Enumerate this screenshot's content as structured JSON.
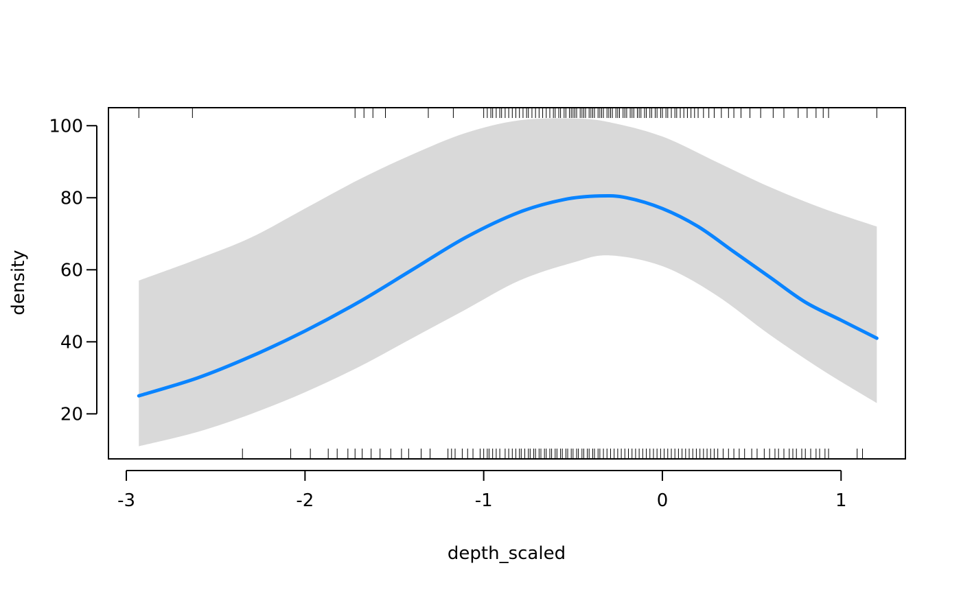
{
  "chart_data": {
    "type": "line",
    "title": "",
    "xlabel": "depth_scaled",
    "ylabel": "density",
    "xlim": [
      -3.1,
      1.36
    ],
    "ylim": [
      7.5,
      105
    ],
    "x_ticks": [
      -3,
      -2,
      -1,
      0,
      1
    ],
    "x_tick_labels": [
      "-3",
      "-2",
      "-1",
      "0",
      "1"
    ],
    "y_ticks": [
      20,
      40,
      60,
      80,
      100
    ],
    "y_tick_labels": [
      "20",
      "40",
      "60",
      "80",
      "100"
    ],
    "grid": false,
    "legend": "none",
    "colors": {
      "line": "#0A84FF",
      "band": "#D9D9D9",
      "axis": "#000000",
      "rug": "#000000"
    },
    "series": [
      {
        "x": [
          -2.93,
          -2.6,
          -2.3,
          -2.0,
          -1.7,
          -1.4,
          -1.1,
          -0.8,
          -0.55,
          -0.35,
          -0.2,
          0.0,
          0.2,
          0.4,
          0.6,
          0.8,
          1.0,
          1.2
        ],
        "values": [
          25,
          30,
          36,
          43,
          51,
          60,
          69,
          76,
          79.5,
          80.5,
          80,
          77,
          72,
          65,
          58,
          51,
          46,
          41
        ]
      }
    ],
    "confidence_band": {
      "x": [
        -2.93,
        -2.6,
        -2.3,
        -2.0,
        -1.7,
        -1.4,
        -1.1,
        -0.8,
        -0.5,
        -0.3,
        0.0,
        0.3,
        0.6,
        0.9,
        1.2
      ],
      "lower": [
        11,
        15,
        20,
        26,
        33,
        41,
        49,
        57,
        62,
        64,
        61,
        53,
        42,
        32,
        23
      ],
      "upper": [
        57,
        63,
        69,
        77,
        85,
        92,
        98,
        101.5,
        102,
        101,
        97,
        90,
        83,
        77,
        72
      ]
    },
    "rug_top": [
      -2.93,
      -2.63,
      -1.72,
      -1.67,
      -1.62,
      -1.55,
      -1.31,
      -1.17,
      -1.0,
      -0.98,
      -0.96,
      -0.95,
      -0.93,
      -0.91,
      -0.9,
      -0.88,
      -0.86,
      -0.84,
      -0.82,
      -0.8,
      -0.78,
      -0.76,
      -0.75,
      -0.73,
      -0.71,
      -0.69,
      -0.67,
      -0.65,
      -0.63,
      -0.61,
      -0.6,
      -0.58,
      -0.57,
      -0.55,
      -0.54,
      -0.52,
      -0.51,
      -0.5,
      -0.49,
      -0.48,
      -0.46,
      -0.45,
      -0.44,
      -0.43,
      -0.41,
      -0.4,
      -0.39,
      -0.38,
      -0.36,
      -0.35,
      -0.34,
      -0.33,
      -0.31,
      -0.3,
      -0.29,
      -0.28,
      -0.26,
      -0.25,
      -0.24,
      -0.22,
      -0.21,
      -0.2,
      -0.18,
      -0.17,
      -0.16,
      -0.14,
      -0.13,
      -0.12,
      -0.1,
      -0.09,
      -0.07,
      -0.06,
      -0.04,
      -0.03,
      -0.01,
      0.0,
      0.02,
      0.03,
      0.05,
      0.07,
      0.08,
      0.1,
      0.12,
      0.14,
      0.16,
      0.18,
      0.2,
      0.23,
      0.26,
      0.29,
      0.33,
      0.37,
      0.4,
      0.44,
      0.49,
      0.55,
      0.62,
      0.68,
      0.76,
      0.81,
      0.86,
      0.9,
      0.93,
      1.2
    ],
    "rug_bottom": [
      -2.35,
      -2.08,
      -1.97,
      -1.87,
      -1.82,
      -1.76,
      -1.72,
      -1.68,
      -1.63,
      -1.58,
      -1.52,
      -1.46,
      -1.42,
      -1.35,
      -1.3,
      -1.2,
      -1.18,
      -1.16,
      -1.12,
      -1.09,
      -1.06,
      -1.02,
      -1.0,
      -0.98,
      -0.97,
      -0.95,
      -0.93,
      -0.91,
      -0.88,
      -0.86,
      -0.84,
      -0.82,
      -0.8,
      -0.79,
      -0.77,
      -0.75,
      -0.74,
      -0.72,
      -0.71,
      -0.69,
      -0.68,
      -0.66,
      -0.65,
      -0.63,
      -0.62,
      -0.6,
      -0.59,
      -0.57,
      -0.56,
      -0.54,
      -0.53,
      -0.51,
      -0.5,
      -0.48,
      -0.47,
      -0.45,
      -0.44,
      -0.42,
      -0.41,
      -0.39,
      -0.38,
      -0.36,
      -0.35,
      -0.33,
      -0.31,
      -0.29,
      -0.27,
      -0.25,
      -0.23,
      -0.21,
      -0.19,
      -0.17,
      -0.15,
      -0.13,
      -0.11,
      -0.09,
      -0.07,
      -0.05,
      -0.03,
      -0.01,
      0.01,
      0.03,
      0.05,
      0.07,
      0.09,
      0.11,
      0.13,
      0.15,
      0.17,
      0.19,
      0.21,
      0.23,
      0.25,
      0.27,
      0.29,
      0.31,
      0.34,
      0.37,
      0.4,
      0.43,
      0.46,
      0.5,
      0.53,
      0.57,
      0.6,
      0.63,
      0.65,
      0.68,
      0.71,
      0.73,
      0.75,
      0.78,
      0.8,
      0.83,
      0.86,
      0.88,
      0.91,
      0.93,
      1.09,
      1.12
    ]
  }
}
